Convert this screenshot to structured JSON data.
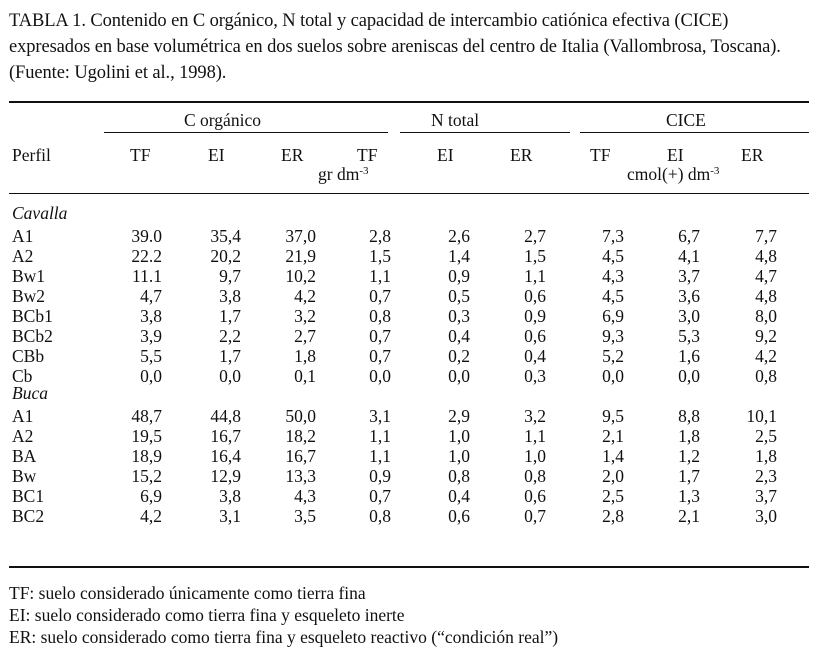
{
  "caption": "TABLA 1. Contenido en C orgánico, N total y capacidad de intercambio catiónica efectiva (CICE) expresados en base volumétrica en dos suelos sobre areniscas del centro de Italia (Vallombrosa, Toscana). (Fuente: Ugolini et al., 1998).",
  "header": {
    "group_c": "C orgánico",
    "group_n": "N total",
    "group_cice": "CICE",
    "perfil": "Perfil",
    "cols": [
      "TF",
      "EI",
      "ER",
      "TF",
      "EI",
      "ER",
      "TF",
      "EI",
      "ER"
    ],
    "unit_c": "gr dm",
    "unit_c_exp": "-3",
    "unit_cice": "cmol(+) dm",
    "unit_cice_exp": "-3"
  },
  "sections": [
    {
      "name": "Cavalla",
      "rows": [
        {
          "perfil": "A1",
          "vals": [
            "39.0",
            "35,4",
            "37,0",
            "2,8",
            "2,6",
            "2,7",
            "7,3",
            "6,7",
            "7,7"
          ]
        },
        {
          "perfil": "A2",
          "vals": [
            "22.2",
            "20,2",
            "21,9",
            "1,5",
            "1,4",
            "1,5",
            "4,5",
            "4,1",
            "4,8"
          ]
        },
        {
          "perfil": "Bw1",
          "vals": [
            "11.1",
            "9,7",
            "10,2",
            "1,1",
            "0,9",
            "1,1",
            "4,3",
            "3,7",
            "4,7"
          ]
        },
        {
          "perfil": "Bw2",
          "vals": [
            "4,7",
            "3,8",
            "4,2",
            "0,7",
            "0,5",
            "0,6",
            "4,5",
            "3,6",
            "4,8"
          ]
        },
        {
          "perfil": "BCb1",
          "vals": [
            "3,8",
            "1,7",
            "3,2",
            "0,8",
            "0,3",
            "0,9",
            "6,9",
            "3,0",
            "8,0"
          ]
        },
        {
          "perfil": "BCb2",
          "vals": [
            "3,9",
            "2,2",
            "2,7",
            "0,7",
            "0,4",
            "0,6",
            "9,3",
            "5,3",
            "9,2"
          ]
        },
        {
          "perfil": "CBb",
          "vals": [
            "5,5",
            "1,7",
            "1,8",
            "0,7",
            "0,2",
            "0,4",
            "5,2",
            "1,6",
            "4,2"
          ]
        },
        {
          "perfil": "Cb",
          "vals": [
            "0,0",
            "0,0",
            "0,1",
            "0,0",
            "0,0",
            "0,3",
            "0,0",
            "0,0",
            "0,8"
          ]
        }
      ]
    },
    {
      "name": "Buca",
      "rows": [
        {
          "perfil": "A1",
          "vals": [
            "48,7",
            "44,8",
            "50,0",
            "3,1",
            "2,9",
            "3,2",
            "9,5",
            "8,8",
            "10,1"
          ]
        },
        {
          "perfil": "A2",
          "vals": [
            "19,5",
            "16,7",
            "18,2",
            "1,1",
            "1,0",
            "1,1",
            "2,1",
            "1,8",
            "2,5"
          ]
        },
        {
          "perfil": "BA",
          "vals": [
            "18,9",
            "16,4",
            "16,7",
            "1,1",
            "1,0",
            "1,0",
            "1,4",
            "1,2",
            "1,8"
          ]
        },
        {
          "perfil": "Bw",
          "vals": [
            "15,2",
            "12,9",
            "13,3",
            "0,9",
            "0,8",
            "0,8",
            "2,0",
            "1,7",
            "2,3"
          ]
        },
        {
          "perfil": "BC1",
          "vals": [
            "6,9",
            "3,8",
            "4,3",
            "0,7",
            "0,4",
            "0,6",
            "2,5",
            "1,3",
            "3,7"
          ]
        },
        {
          "perfil": "BC2",
          "vals": [
            "4,2",
            "3,1",
            "3,5",
            "0,8",
            "0,6",
            "0,7",
            "2,8",
            "2,1",
            "3,0"
          ]
        }
      ]
    }
  ],
  "footnotes": [
    "TF: suelo considerado únicamente como tierra fina",
    "EI: suelo considerado como tierra fina y esqueleto inerte",
    "ER: suelo considerado como tierra fina y esqueleto reactivo (“condición real”)"
  ]
}
